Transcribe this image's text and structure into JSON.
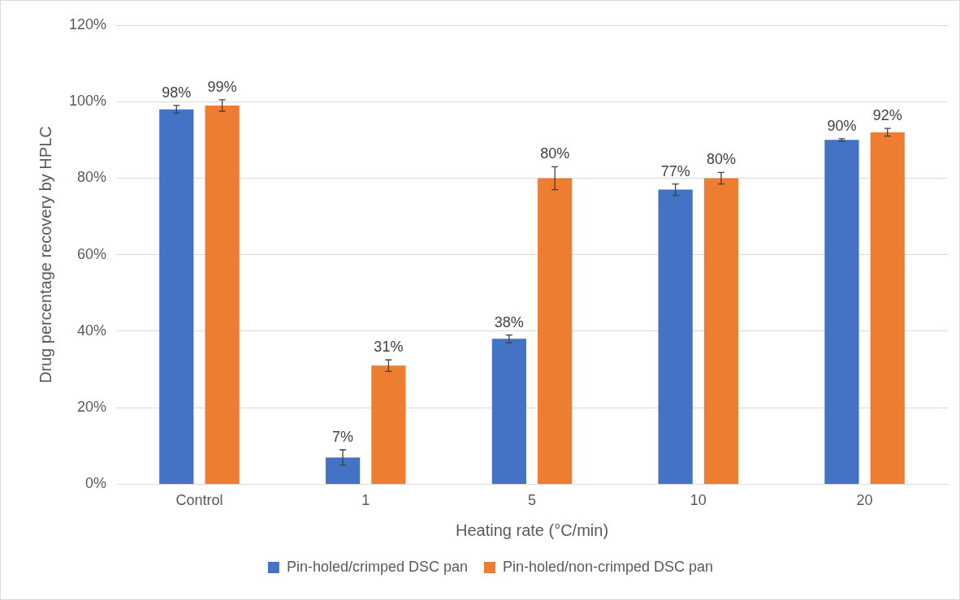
{
  "chart_data": {
    "type": "bar",
    "xlabel": "Heating rate (°C/min)",
    "ylabel": "Drug percentage recovery by HPLC",
    "categories": [
      "Control",
      "1",
      "5",
      "10",
      "20"
    ],
    "series": [
      {
        "name": "Pin-holed/crimped DSC pan",
        "color": "#4472c4",
        "values": [
          98,
          7,
          38,
          77,
          90
        ],
        "errors": [
          1,
          2,
          1,
          1.5,
          0.3
        ],
        "value_labels": [
          "98%",
          "7%",
          "38%",
          "77%",
          "90%"
        ]
      },
      {
        "name": "Pin-holed/non-crimped DSC pan",
        "color": "#ed7d31",
        "values": [
          99,
          31,
          80,
          80,
          92
        ],
        "errors": [
          1.5,
          1.5,
          3,
          1.5,
          1
        ],
        "value_labels": [
          "99%",
          "31%",
          "80%",
          "80%",
          "92%"
        ]
      }
    ],
    "ylim": [
      0,
      120
    ],
    "yticks": [
      {
        "value": 0,
        "label": "0%"
      },
      {
        "value": 20,
        "label": "20%"
      },
      {
        "value": 40,
        "label": "40%"
      },
      {
        "value": 60,
        "label": "60%"
      },
      {
        "value": 80,
        "label": "80%"
      },
      {
        "value": 100,
        "label": "100%"
      },
      {
        "value": 120,
        "label": "120%"
      }
    ],
    "grid": "y",
    "legend": "bottom"
  }
}
